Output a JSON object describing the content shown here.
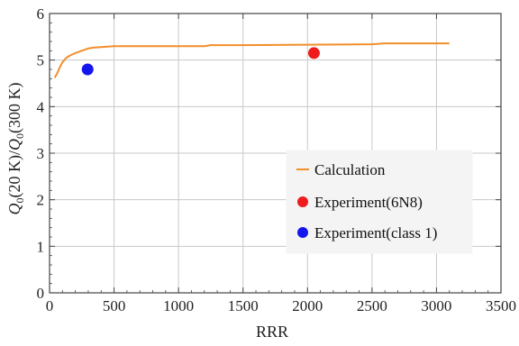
{
  "chart_data": {
    "type": "scatter",
    "title": "",
    "xlabel": "RRR",
    "ylabel": "Q0(20K)/Q0(300K)",
    "ylabel_parts": {
      "sym1": "Q",
      "sub1": "0",
      "mid": "(20 K)/",
      "sym2": "Q",
      "sub2": "0",
      "end": "(300 K)"
    },
    "xlim": [
      0,
      3500
    ],
    "ylim": [
      0,
      6
    ],
    "xticks": [
      0,
      500,
      1000,
      1500,
      2000,
      2500,
      3000,
      3500
    ],
    "yticks": [
      0,
      1,
      2,
      3,
      4,
      5,
      6
    ],
    "grid": true,
    "legend_position": "right",
    "series": [
      {
        "name": "Calculation",
        "kind": "line",
        "color": "#f28e2b",
        "x": [
          40,
          60,
          80,
          100,
          130,
          160,
          200,
          250,
          300,
          350,
          400,
          450,
          500,
          600,
          800,
          1000,
          1200,
          1250,
          1500,
          2000,
          2500,
          2600,
          3000,
          3100
        ],
        "y": [
          4.62,
          4.72,
          4.85,
          4.95,
          5.05,
          5.1,
          5.15,
          5.2,
          5.25,
          5.27,
          5.28,
          5.29,
          5.3,
          5.3,
          5.3,
          5.3,
          5.3,
          5.32,
          5.32,
          5.33,
          5.34,
          5.36,
          5.36,
          5.36
        ]
      },
      {
        "name": "Experiment(6N8)",
        "kind": "point",
        "color": "#ee1c1c",
        "x": [
          2050
        ],
        "y": [
          5.15
        ]
      },
      {
        "name": "Experiment(class 1)",
        "kind": "point",
        "color": "#1515ee",
        "x": [
          295
        ],
        "y": [
          4.8
        ]
      }
    ]
  }
}
